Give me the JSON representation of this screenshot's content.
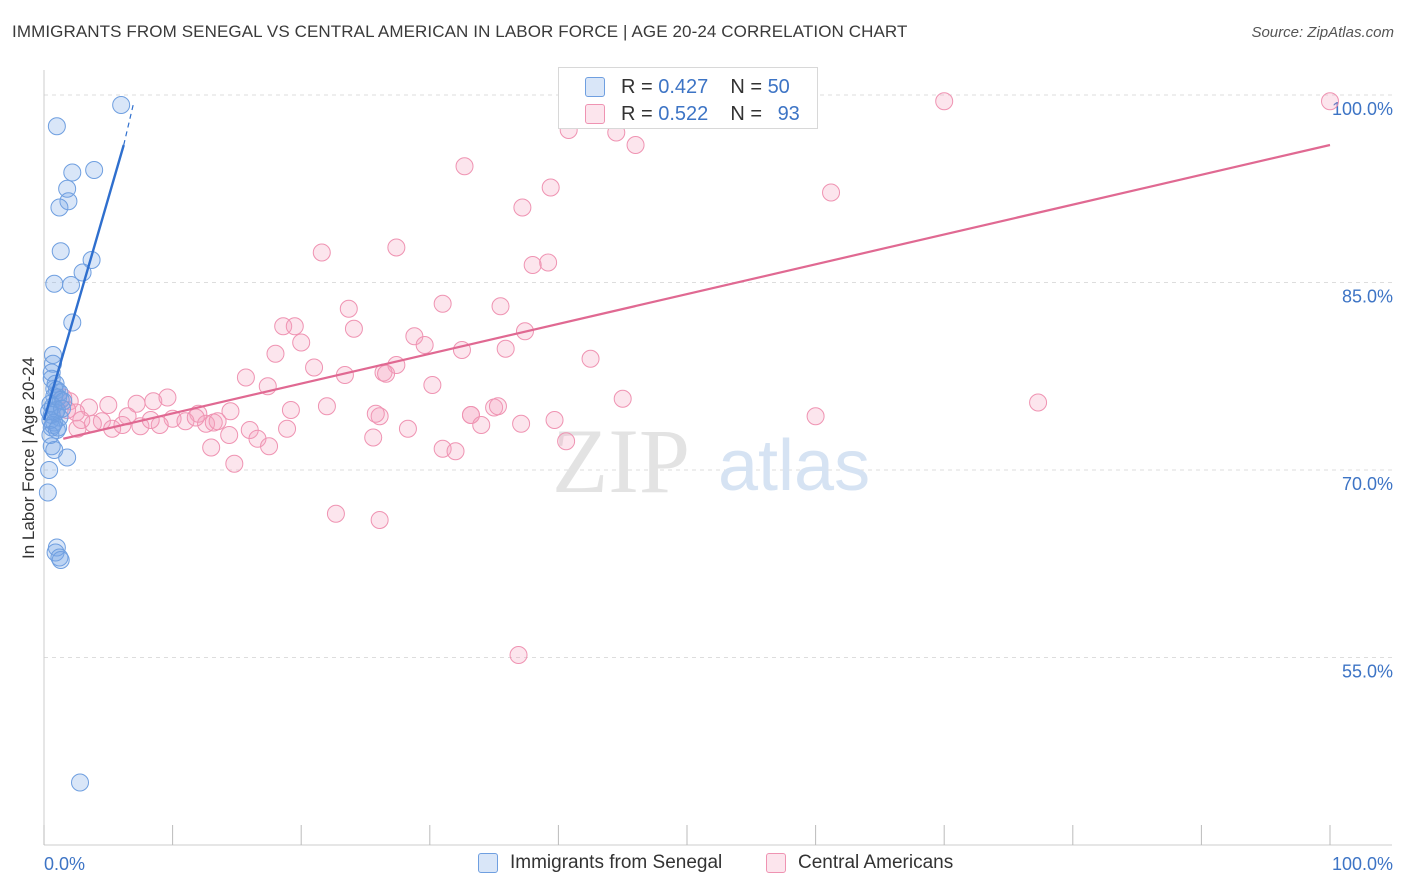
{
  "title": "IMMIGRANTS FROM SENEGAL VS CENTRAL AMERICAN IN LABOR FORCE | AGE 20-24 CORRELATION CHART",
  "source": "Source: ZipAtlas.com",
  "watermark": {
    "zip": "ZIP",
    "atlas": "atlas"
  },
  "colors": {
    "senegal_fill": "rgba(120,165,230,0.28)",
    "senegal_stroke": "#6f9fe0",
    "senegal_line": "#2f6fce",
    "central_fill": "rgba(245,160,190,0.28)",
    "central_stroke": "#ef93b2",
    "central_line": "#e06992",
    "axis_label": "#3d74c5",
    "grid": "#dddddd"
  },
  "stats": {
    "r_label": "R =",
    "n_label": "N =",
    "senegal": {
      "r": "0.427",
      "n": "50"
    },
    "central": {
      "r": "0.522",
      "n": "93"
    }
  },
  "legend": {
    "senegal": "Immigrants from Senegal",
    "central": "Central Americans"
  },
  "chart_data": {
    "type": "scatter",
    "title": "IMMIGRANTS FROM SENEGAL VS CENTRAL AMERICAN IN LABOR FORCE | AGE 20-24 CORRELATION CHART",
    "xlabel": "",
    "ylabel": "In Labor Force | Age 20-24",
    "xlim": [
      0,
      100
    ],
    "ylim": [
      40,
      102
    ],
    "x_tick_labels": [
      "0.0%",
      "100.0%"
    ],
    "y_ticks": [
      55,
      70,
      85,
      100
    ],
    "y_tick_labels": [
      "55.0%",
      "70.0%",
      "85.0%",
      "100.0%"
    ],
    "grid": true,
    "series": [
      {
        "name": "Immigrants from Senegal",
        "trend": {
          "x0": 0.0,
          "y0": 74.0,
          "x1": 6.2,
          "y1": 96.0,
          "dash_x1": 7.0,
          "dash_y1": 99.5
        },
        "points": [
          [
            6.0,
            99.2
          ],
          [
            1.0,
            97.5
          ],
          [
            3.9,
            94.0
          ],
          [
            2.2,
            93.8
          ],
          [
            1.8,
            92.5
          ],
          [
            1.9,
            91.5
          ],
          [
            1.2,
            91.0
          ],
          [
            1.3,
            87.5
          ],
          [
            3.7,
            86.8
          ],
          [
            3.0,
            85.8
          ],
          [
            0.8,
            84.9
          ],
          [
            2.1,
            84.8
          ],
          [
            2.2,
            81.8
          ],
          [
            0.7,
            79.2
          ],
          [
            0.7,
            78.5
          ],
          [
            0.6,
            77.8
          ],
          [
            0.6,
            77.3
          ],
          [
            0.8,
            76.5
          ],
          [
            1.0,
            76.4
          ],
          [
            1.2,
            76.2
          ],
          [
            0.8,
            75.9
          ],
          [
            1.1,
            75.8
          ],
          [
            1.3,
            75.6
          ],
          [
            0.5,
            75.3
          ],
          [
            0.7,
            75.1
          ],
          [
            1.0,
            74.8
          ],
          [
            0.9,
            74.6
          ],
          [
            0.6,
            74.4
          ],
          [
            1.2,
            74.2
          ],
          [
            0.5,
            74.0
          ],
          [
            0.8,
            73.8
          ],
          [
            0.7,
            73.6
          ],
          [
            0.6,
            73.4
          ],
          [
            1.0,
            73.2
          ],
          [
            0.6,
            71.9
          ],
          [
            0.8,
            71.6
          ],
          [
            1.8,
            71.0
          ],
          [
            0.4,
            70.0
          ],
          [
            0.3,
            68.2
          ],
          [
            1.0,
            63.8
          ],
          [
            0.9,
            63.4
          ],
          [
            1.2,
            63.0
          ],
          [
            1.3,
            62.8
          ],
          [
            2.8,
            45.0
          ],
          [
            1.5,
            75.5
          ],
          [
            0.4,
            74.7
          ],
          [
            0.9,
            76.9
          ],
          [
            1.4,
            74.9
          ],
          [
            0.5,
            72.8
          ],
          [
            1.1,
            73.4
          ]
        ]
      },
      {
        "name": "Central Americans",
        "trend": {
          "x0": 1.5,
          "y0": 72.5,
          "x1": 100.0,
          "y1": 96.0
        },
        "points": [
          [
            43.0,
            99.5
          ],
          [
            56.0,
            99.2
          ],
          [
            70.0,
            99.5
          ],
          [
            100.0,
            99.5
          ],
          [
            40.8,
            97.2
          ],
          [
            44.5,
            97.0
          ],
          [
            46.0,
            96.0
          ],
          [
            32.7,
            94.3
          ],
          [
            39.4,
            92.6
          ],
          [
            61.2,
            92.2
          ],
          [
            37.2,
            91.0
          ],
          [
            27.4,
            87.8
          ],
          [
            21.6,
            87.4
          ],
          [
            39.2,
            86.6
          ],
          [
            38.0,
            86.4
          ],
          [
            31.0,
            83.3
          ],
          [
            35.5,
            83.1
          ],
          [
            23.7,
            82.9
          ],
          [
            18.6,
            81.5
          ],
          [
            19.5,
            81.5
          ],
          [
            24.1,
            81.3
          ],
          [
            28.8,
            80.7
          ],
          [
            37.4,
            81.1
          ],
          [
            29.6,
            80.0
          ],
          [
            20.0,
            80.2
          ],
          [
            35.9,
            79.7
          ],
          [
            32.5,
            79.6
          ],
          [
            18.0,
            79.3
          ],
          [
            42.5,
            78.9
          ],
          [
            27.4,
            78.4
          ],
          [
            21.0,
            78.2
          ],
          [
            26.4,
            77.8
          ],
          [
            26.6,
            77.7
          ],
          [
            23.4,
            77.6
          ],
          [
            15.7,
            77.4
          ],
          [
            17.4,
            76.7
          ],
          [
            30.2,
            76.8
          ],
          [
            8.5,
            75.5
          ],
          [
            45.0,
            75.7
          ],
          [
            77.3,
            75.4
          ],
          [
            1.5,
            75.8
          ],
          [
            2.0,
            75.5
          ],
          [
            3.5,
            75.0
          ],
          [
            5.0,
            75.2
          ],
          [
            7.2,
            75.3
          ],
          [
            22.0,
            75.1
          ],
          [
            19.2,
            74.8
          ],
          [
            14.5,
            74.7
          ],
          [
            33.2,
            74.4
          ],
          [
            26.1,
            74.3
          ],
          [
            33.2,
            74.4
          ],
          [
            25.8,
            74.5
          ],
          [
            35.0,
            75.0
          ],
          [
            35.3,
            75.1
          ],
          [
            2.5,
            74.6
          ],
          [
            4.5,
            73.9
          ],
          [
            6.5,
            74.3
          ],
          [
            12.0,
            74.5
          ],
          [
            10.0,
            74.1
          ],
          [
            11.0,
            73.9
          ],
          [
            12.6,
            73.7
          ],
          [
            13.2,
            73.8
          ],
          [
            16.0,
            73.2
          ],
          [
            9.0,
            73.6
          ],
          [
            7.5,
            73.5
          ],
          [
            3.8,
            73.7
          ],
          [
            2.6,
            73.3
          ],
          [
            5.3,
            73.3
          ],
          [
            28.3,
            73.3
          ],
          [
            34.0,
            73.6
          ],
          [
            37.1,
            73.7
          ],
          [
            39.7,
            74.0
          ],
          [
            60.0,
            74.3
          ],
          [
            8.3,
            74.0
          ],
          [
            11.8,
            74.2
          ],
          [
            13.5,
            73.9
          ],
          [
            14.4,
            72.8
          ],
          [
            16.6,
            72.5
          ],
          [
            17.5,
            71.9
          ],
          [
            25.6,
            72.6
          ],
          [
            31.0,
            71.7
          ],
          [
            32.0,
            71.5
          ],
          [
            40.6,
            72.3
          ],
          [
            14.8,
            70.5
          ],
          [
            13.0,
            71.8
          ],
          [
            22.7,
            66.5
          ],
          [
            26.1,
            66.0
          ],
          [
            36.9,
            55.2
          ],
          [
            1.8,
            74.8
          ],
          [
            2.9,
            74.0
          ],
          [
            18.9,
            73.3
          ],
          [
            6.1,
            73.6
          ],
          [
            9.6,
            75.8
          ]
        ]
      }
    ]
  }
}
